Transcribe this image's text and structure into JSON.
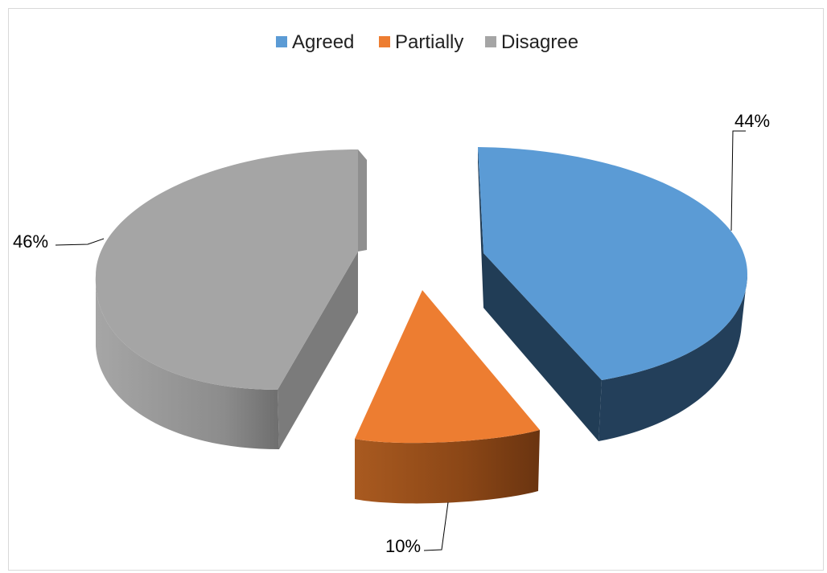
{
  "chart_data": {
    "type": "pie",
    "style": "3d-exploded",
    "legend_position": "top",
    "categories": [
      "Agreed",
      "Partially",
      "Disagree"
    ],
    "values": [
      44,
      10,
      46
    ],
    "labels": [
      "44%",
      "10%",
      "46%"
    ],
    "colors": {
      "Agreed": "#5b9bd5",
      "Partially": "#ed7d31",
      "Disagree": "#a5a5a5"
    },
    "title": ""
  }
}
